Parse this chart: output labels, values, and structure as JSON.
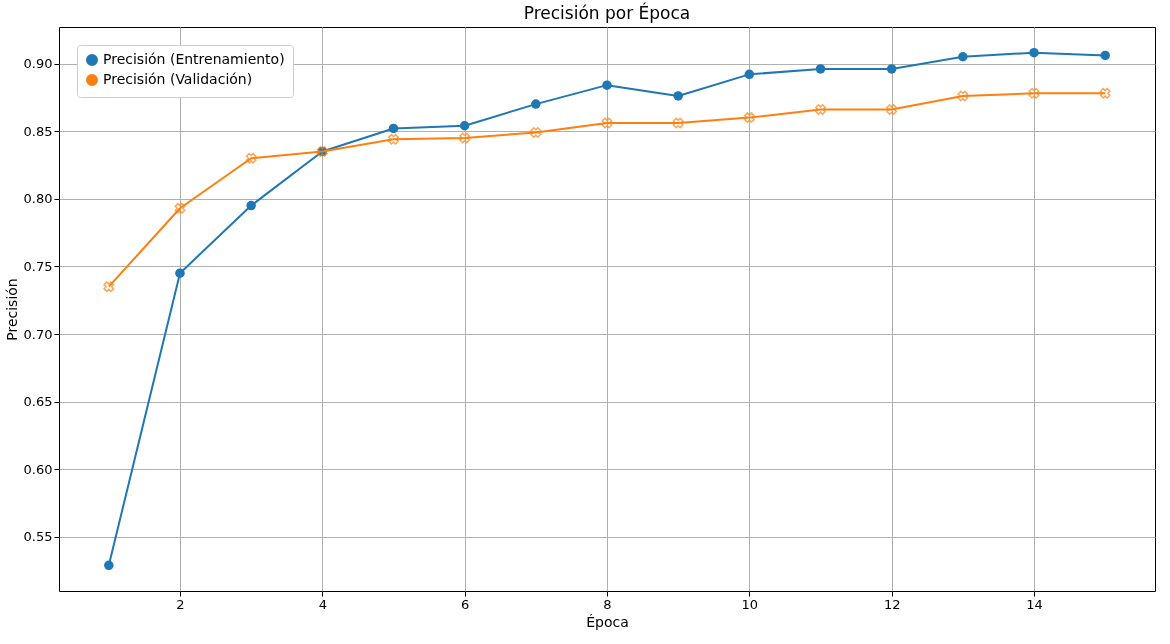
{
  "chart_data": {
    "type": "line",
    "title": "Precisión por Época",
    "xlabel": "Época",
    "ylabel": "Precisión",
    "x": [
      1,
      2,
      3,
      4,
      5,
      6,
      7,
      8,
      9,
      10,
      11,
      12,
      13,
      14,
      15
    ],
    "series": [
      {
        "name": "Precisión (Entrenamiento)",
        "color": "#1f77b4",
        "marker": "circle",
        "values": [
          0.529,
          0.745,
          0.795,
          0.835,
          0.852,
          0.854,
          0.87,
          0.884,
          0.876,
          0.892,
          0.896,
          0.896,
          0.905,
          0.908,
          0.906
        ]
      },
      {
        "name": "Precisión (Validación)",
        "color": "#ff7f0e",
        "marker": "cross",
        "values": [
          0.735,
          0.793,
          0.83,
          0.835,
          0.844,
          0.845,
          0.849,
          0.856,
          0.856,
          0.86,
          0.866,
          0.866,
          0.876,
          0.878,
          0.878
        ]
      }
    ],
    "xlim": [
      0.3,
      15.7
    ],
    "ylim": [
      0.51,
      0.927
    ],
    "xticks": [
      2,
      4,
      6,
      8,
      10,
      12,
      14
    ],
    "yticks": [
      0.55,
      {
        "value": 0.6,
        "label": "0.60"
      },
      0.65,
      {
        "value": 0.7,
        "label": "0.70"
      },
      0.75,
      {
        "value": 0.8,
        "label": "0.80"
      },
      0.85,
      {
        "value": 0.9,
        "label": "0.90"
      }
    ],
    "grid": true,
    "legend": "top left",
    "line_style": "solid"
  }
}
